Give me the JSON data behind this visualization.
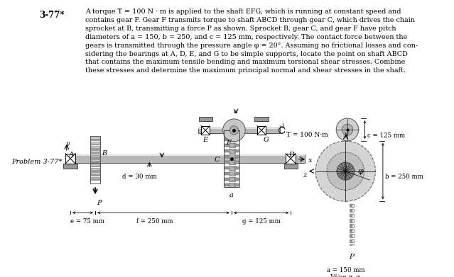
{
  "title_num": "3-77*",
  "problem_text_lines": [
    "A torque T = 100 N · m is applied to the shaft EFG, which is running at constant speed and",
    "contains gear F. Gear F transmits torque to shaft ABCD through gear C, which drives the chain",
    "sprocket at B, transmitting a force P as shown. Sprocket B, gear C, and gear F have pitch",
    "diameters of a = 150, b = 250, and c = 125 mm, respectively. The contact force between the",
    "gears is transmitted through the pressure angle φ = 20°. Assuming no frictional losses and con-",
    "sidering the bearings at A, D, E, and G to be simple supports, locate the point on shaft ABCD",
    "that contains the maximum tensile bending and maximum torsional shear stresses. Combine",
    "these stresses and determine the maximum principal normal and shear stresses in the shaft."
  ],
  "problem_label": "Problem 3-77*",
  "bg_color": "#ffffff",
  "text_color": "#000000"
}
